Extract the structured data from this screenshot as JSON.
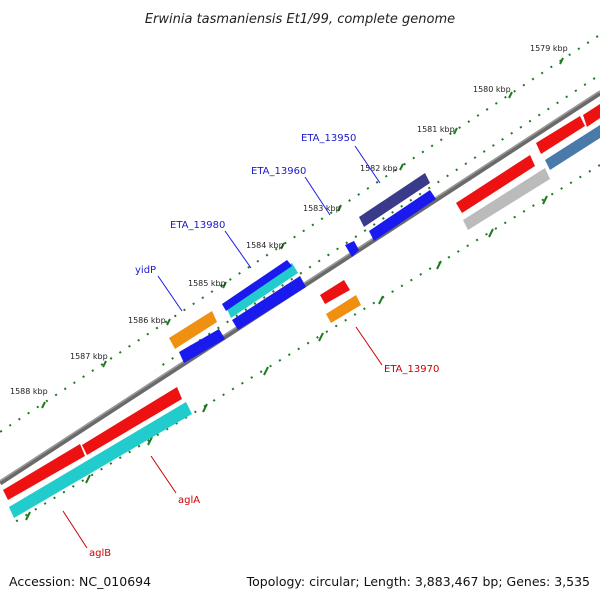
{
  "title": "Erwinia tasmaniensis Et1/99, complete genome",
  "footer": {
    "accession": "Accession: NC_010694",
    "topology": "Topology: circular; Length: 3,883,467 bp; Genes: 3,535"
  },
  "ticks": [
    "1579 kbp",
    "1580 kbp",
    "1581 kbp",
    "1582 kbp",
    "1583 kbp",
    "1584 kbp",
    "1585 kbp",
    "1586 kbp",
    "1587 kbp",
    "1588 kbp"
  ],
  "gene_labels": {
    "ETA_13950": "ETA_13950",
    "ETA_13960": "ETA_13960",
    "ETA_13980": "ETA_13980",
    "yidP": "yidP",
    "ETA_13970": "ETA_13970",
    "aglA": "aglA",
    "aglB": "aglB"
  },
  "colors": {
    "red": "#ee1111",
    "blue": "#1a1aee",
    "navy": "#3a3a8a",
    "cyan": "#22cccc",
    "orange": "#f09010",
    "gray": "#bbbbbb",
    "steel": "#4a7aaa",
    "dots": "#207a20"
  }
}
